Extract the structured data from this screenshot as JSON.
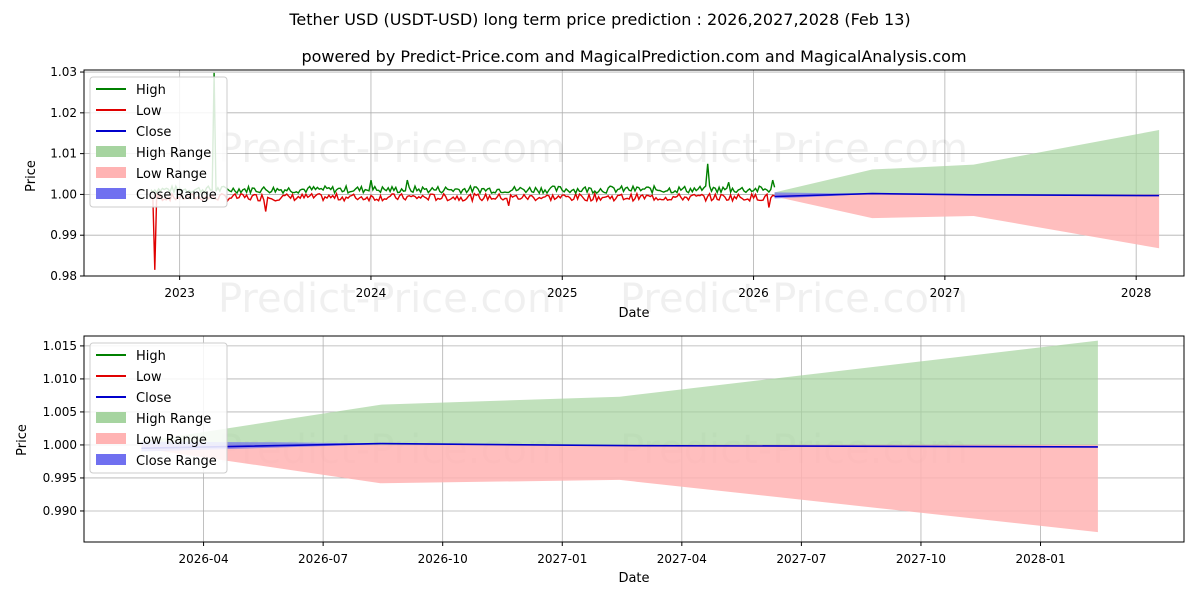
{
  "title": "Tether USD (USDT-USD) long term price prediction : 2026,2027,2028 (Feb 13)",
  "subtitle": "powered by Predict-Price.com and MagicalPrediction.com and MagicalAnalysis.com",
  "watermark": "Predict-Price.com",
  "colors": {
    "high": "#008000",
    "low": "#e00000",
    "close": "#0000cc",
    "high_range": "#a6d4a0",
    "low_range": "#ffb3b3",
    "close_range": "#7070f0"
  },
  "chart_data": [
    {
      "type": "line",
      "xlabel": "Date",
      "ylabel": "Price",
      "xlim": [
        2022.5,
        2028.25
      ],
      "ylim": [
        0.98,
        1.0305
      ],
      "yticks": [
        {
          "value": 0.98,
          "label": "0.98"
        },
        {
          "value": 0.99,
          "label": "0.99"
        },
        {
          "value": 1.0,
          "label": "1.00"
        },
        {
          "value": 1.01,
          "label": "1.01"
        },
        {
          "value": 1.02,
          "label": "1.02"
        },
        {
          "value": 1.03,
          "label": "1.03"
        }
      ],
      "xticks": [
        {
          "value": 2023,
          "label": "2023"
        },
        {
          "value": 2024,
          "label": "2024"
        },
        {
          "value": 2025,
          "label": "2025"
        },
        {
          "value": 2026,
          "label": "2026"
        },
        {
          "value": 2027,
          "label": "2027"
        },
        {
          "value": 2028,
          "label": "2028"
        }
      ],
      "legend": {
        "position": "top-left",
        "entries": [
          "High",
          "Low",
          "Close",
          "High Range",
          "Low Range",
          "Close Range"
        ]
      },
      "history": {
        "x_start": 2022.85,
        "x_end": 2026.11,
        "step": 0.01,
        "high_base": 1.0012,
        "low_base": 0.9993,
        "high_spikes": [
          [
            2023.18,
            1.0298
          ],
          [
            2024.0,
            1.0035
          ],
          [
            2024.19,
            1.0035
          ],
          [
            2025.76,
            1.0075
          ],
          [
            2025.87,
            1.003
          ],
          [
            2026.1,
            1.0035
          ]
        ],
        "low_spikes": [
          [
            2022.87,
            0.9815
          ],
          [
            2023.45,
            0.9958
          ],
          [
            2024.72,
            0.9972
          ],
          [
            2026.08,
            0.9968
          ]
        ]
      },
      "high_range": {
        "x": [
          2026.11,
          2026.62,
          2027.15,
          2028.12
        ],
        "y": [
          1.0005,
          1.0061,
          1.0073,
          1.0158
        ]
      },
      "low_range": {
        "x": [
          2026.11,
          2026.62,
          2027.15,
          2028.12
        ],
        "y": [
          0.9995,
          0.9942,
          0.9947,
          0.9868
        ]
      },
      "close_range": {
        "x": [
          2026.11,
          2026.4,
          2026.62
        ],
        "y_upper": [
          1.0005,
          1.0003,
          1.0002
        ],
        "y_lower": [
          0.999,
          0.9996,
          1.0001
        ]
      },
      "close": {
        "x": [
          2026.11,
          2026.62,
          2027.15,
          2028.12
        ],
        "y": [
          0.9995,
          1.0002,
          0.9999,
          0.9997
        ]
      }
    },
    {
      "type": "line",
      "xlabel": "Date",
      "ylabel": "Price",
      "xlim": [
        2026.0,
        2028.3
      ],
      "ylim": [
        0.9853,
        1.0165
      ],
      "yticks": [
        {
          "value": 0.99,
          "label": "0.990"
        },
        {
          "value": 0.995,
          "label": "0.995"
        },
        {
          "value": 1.0,
          "label": "1.000"
        },
        {
          "value": 1.005,
          "label": "1.005"
        },
        {
          "value": 1.01,
          "label": "1.010"
        },
        {
          "value": 1.015,
          "label": "1.015"
        }
      ],
      "xticks": [
        {
          "value": 2026.25,
          "label": "2026-04"
        },
        {
          "value": 2026.5,
          "label": "2026-07"
        },
        {
          "value": 2026.75,
          "label": "2026-10"
        },
        {
          "value": 2027.0,
          "label": "2027-01"
        },
        {
          "value": 2027.25,
          "label": "2027-04"
        },
        {
          "value": 2027.5,
          "label": "2027-07"
        },
        {
          "value": 2027.75,
          "label": "2027-10"
        },
        {
          "value": 2028.0,
          "label": "2028-01"
        }
      ],
      "legend": {
        "position": "top-left",
        "entries": [
          "High",
          "Low",
          "Close",
          "High Range",
          "Low Range",
          "Close Range"
        ]
      },
      "high_range": {
        "x": [
          2026.12,
          2026.62,
          2027.12,
          2028.12
        ],
        "y": [
          1.0005,
          1.0061,
          1.0073,
          1.0158
        ]
      },
      "low_range": {
        "x": [
          2026.12,
          2026.62,
          2027.12,
          2028.12
        ],
        "y": [
          0.9995,
          0.9942,
          0.9947,
          0.9868
        ]
      },
      "close_range": {
        "x": [
          2026.12,
          2026.4,
          2026.62
        ],
        "y_upper": [
          1.0005,
          1.0004,
          1.0002
        ],
        "y_lower": [
          0.999,
          0.9996,
          1.0001
        ]
      },
      "close": {
        "x": [
          2026.12,
          2026.62,
          2027.12,
          2028.12
        ],
        "y": [
          0.9995,
          1.0002,
          0.9999,
          0.9997
        ]
      }
    }
  ]
}
